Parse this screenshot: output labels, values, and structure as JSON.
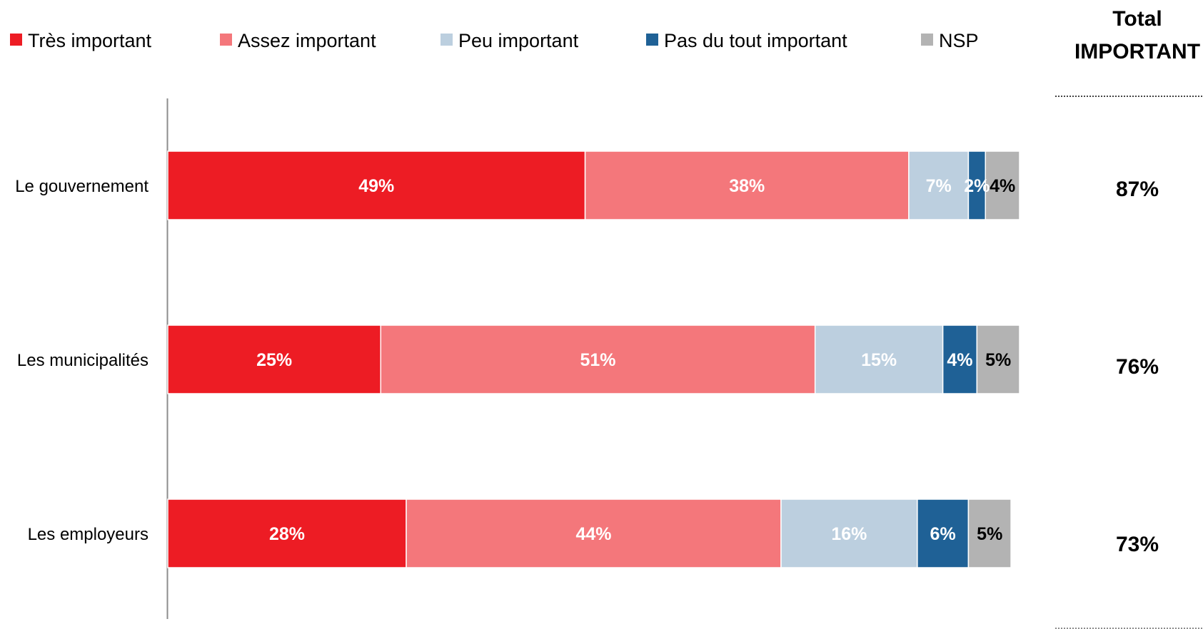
{
  "chart_data": {
    "type": "bar",
    "orientation": "horizontal",
    "stacked": true,
    "categories": [
      "Le gouvernement",
      "Les municipalités",
      "Les employeurs"
    ],
    "series": [
      {
        "name": "Très important",
        "color": "#ED1C24",
        "label_color": "#FFFFFF",
        "values": [
          49,
          25,
          28
        ]
      },
      {
        "name": "Assez important",
        "color": "#F4777B",
        "label_color": "#FFFFFF",
        "values": [
          38,
          51,
          44
        ]
      },
      {
        "name": "Peu important",
        "color": "#BCCFDF",
        "label_color": "#FFFFFF",
        "values": [
          7,
          15,
          16
        ]
      },
      {
        "name": "Pas du tout important",
        "color": "#1F6196",
        "label_color": "#FFFFFF",
        "values": [
          2,
          4,
          6
        ]
      },
      {
        "name": "NSP",
        "color": "#B3B3B3",
        "label_color": "#000000",
        "values": [
          4,
          5,
          5
        ]
      }
    ],
    "value_suffix": "%",
    "legend_position": "top",
    "grid": false,
    "xlim": [
      0,
      100
    ],
    "title": "",
    "xlabel": "",
    "ylabel": "",
    "side_column": {
      "title_line1": "Total",
      "title_line2": "IMPORTANT",
      "values": [
        "87%",
        "76%",
        "73%"
      ]
    }
  }
}
